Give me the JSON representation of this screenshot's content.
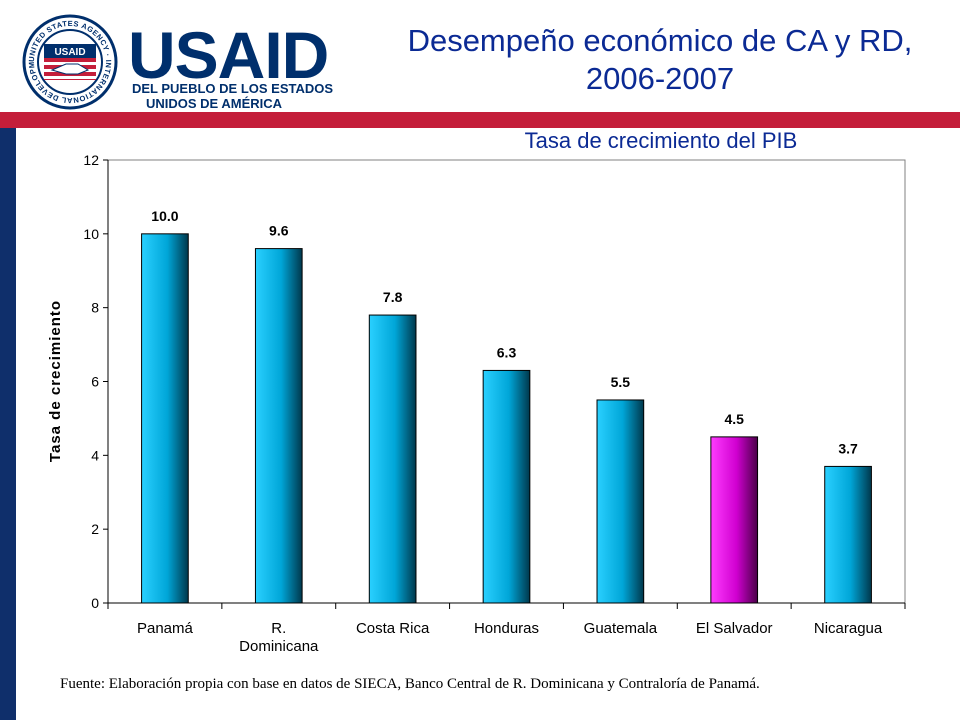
{
  "header": {
    "title_line1": "Desempeño económico de CA y RD,",
    "title_line2": "2006-2007"
  },
  "logo": {
    "word": "USAID",
    "subtitle_line1": "DEL PUEBLO DE LOS ESTADOS",
    "subtitle_line2": "UNIDOS DE AMÉRICA",
    "seal_text": "UNITED STATES AGENCY · INTERNATIONAL DEVELOPMENT",
    "seal_inner": "USAID"
  },
  "colors": {
    "brand_blue": "#002f6c",
    "brand_red": "#c41e3a",
    "title_blue": "#0b2a94",
    "bar_cyan": "#00b4e8",
    "bar_magenta": "#e61ee6"
  },
  "source": "Fuente: Elaboración propia con base en datos de SIECA, Banco Central de R. Dominicana y Contraloría de Panamá.",
  "chart_data": {
    "type": "bar",
    "title": "Tasa de crecimiento del PIB",
    "ylabel": "Tasa de crecimiento",
    "xlabel": "",
    "ylim": [
      0,
      12
    ],
    "yticks": [
      0,
      2,
      4,
      6,
      8,
      10,
      12
    ],
    "grid": false,
    "legend": "none",
    "categories": [
      [
        "Panamá"
      ],
      [
        "R.",
        "Dominicana"
      ],
      [
        "Costa Rica"
      ],
      [
        "Honduras"
      ],
      [
        "Guatemala"
      ],
      [
        "El Salvador"
      ],
      [
        "Nicaragua"
      ]
    ],
    "values": [
      10.0,
      9.6,
      7.8,
      6.3,
      5.5,
      4.5,
      3.7
    ],
    "value_labels": [
      "10.0",
      "9.6",
      "7.8",
      "6.3",
      "5.5",
      "4.5",
      "3.7"
    ],
    "highlight_index": 5
  }
}
